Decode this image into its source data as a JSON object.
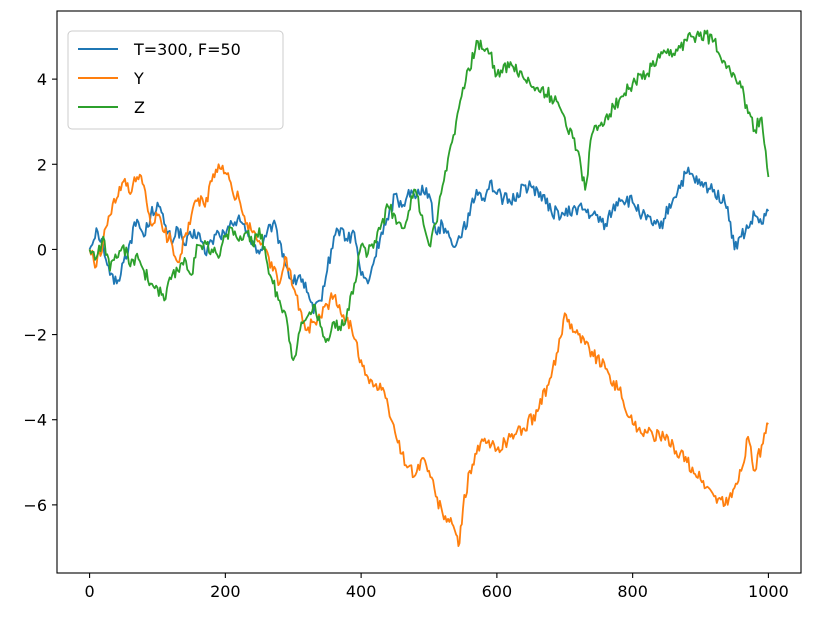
{
  "chart_data": {
    "type": "line",
    "title": "",
    "xlabel": "",
    "ylabel": "",
    "xlim": [
      -48,
      1048
    ],
    "ylim": [
      -7.6,
      5.6
    ],
    "xticks": [
      0,
      200,
      400,
      600,
      800,
      1000
    ],
    "yticks": [
      -6,
      -4,
      -2,
      0,
      2,
      4
    ],
    "ytick_labels": [
      "−6",
      "−4",
      "−2",
      "0",
      "2",
      "4"
    ],
    "grid": false,
    "legend_position": "top-left",
    "series": [
      {
        "name": "T=300, F=50",
        "color": "#1f77b4",
        "x": [
          0,
          10,
          20,
          30,
          40,
          50,
          60,
          70,
          80,
          90,
          100,
          110,
          120,
          130,
          140,
          150,
          160,
          170,
          180,
          190,
          200,
          210,
          220,
          230,
          240,
          250,
          260,
          270,
          280,
          290,
          300,
          310,
          320,
          330,
          340,
          350,
          360,
          370,
          380,
          390,
          400,
          410,
          420,
          430,
          440,
          450,
          460,
          470,
          480,
          490,
          500,
          510,
          520,
          530,
          540,
          550,
          560,
          570,
          580,
          590,
          600,
          620,
          640,
          660,
          680,
          700,
          720,
          740,
          760,
          780,
          800,
          820,
          840,
          860,
          880,
          900,
          920,
          940,
          950,
          960,
          970,
          980,
          990,
          1000
        ],
        "values": [
          0,
          0.5,
          0.1,
          -0.6,
          -0.8,
          -0.3,
          0.2,
          0.7,
          0.3,
          0.8,
          1.1,
          0.6,
          0.2,
          0.5,
          0.1,
          0.3,
          0.4,
          -0.1,
          0.2,
          0.4,
          0.3,
          0.6,
          0.8,
          0.4,
          0.2,
          -0.1,
          0.3,
          0.6,
          0.2,
          -0.4,
          -0.8,
          -0.6,
          -1.0,
          -1.5,
          -1.2,
          -0.5,
          0.3,
          0.5,
          0.2,
          0.4,
          -0.6,
          -0.8,
          -0.2,
          0.4,
          0.7,
          1.3,
          1.0,
          1.4,
          1.2,
          1.5,
          1.3,
          0.4,
          0.6,
          0.3,
          0.1,
          0.5,
          0.8,
          1.4,
          1.2,
          1.6,
          1.3,
          1.1,
          1.5,
          1.4,
          0.9,
          0.8,
          1.0,
          0.8,
          0.6,
          1.2,
          1.1,
          0.7,
          0.5,
          1.2,
          1.8,
          1.5,
          1.4,
          1.0,
          0.0,
          0.3,
          0.5,
          0.8,
          0.6,
          0.9
        ]
      },
      {
        "name": "Y",
        "color": "#ff7f0e",
        "x": [
          0,
          10,
          20,
          30,
          40,
          50,
          60,
          70,
          80,
          90,
          100,
          110,
          120,
          130,
          140,
          150,
          160,
          170,
          180,
          190,
          200,
          210,
          220,
          230,
          240,
          250,
          260,
          270,
          280,
          290,
          300,
          310,
          320,
          330,
          340,
          350,
          360,
          370,
          380,
          390,
          400,
          410,
          420,
          430,
          440,
          450,
          460,
          470,
          480,
          490,
          500,
          510,
          520,
          530,
          540,
          545,
          550,
          560,
          570,
          580,
          600,
          620,
          640,
          660,
          680,
          690,
          700,
          720,
          740,
          760,
          780,
          800,
          820,
          840,
          860,
          880,
          900,
          920,
          940,
          950,
          960,
          970,
          980,
          990,
          1000
        ],
        "values": [
          0,
          -0.4,
          0.2,
          0.8,
          1.2,
          1.6,
          1.3,
          1.7,
          1.5,
          0.6,
          0.8,
          0.4,
          0.2,
          -0.3,
          0.3,
          0.8,
          1.2,
          1.0,
          1.6,
          2.0,
          1.8,
          1.4,
          1.2,
          0.6,
          0.4,
          0.2,
          0.0,
          -0.5,
          -0.8,
          -0.2,
          -0.9,
          -1.4,
          -1.9,
          -1.7,
          -1.6,
          -1.3,
          -1.1,
          -1.5,
          -1.6,
          -2.1,
          -2.6,
          -3.0,
          -3.2,
          -3.3,
          -3.7,
          -4.3,
          -4.8,
          -5.1,
          -5.3,
          -4.9,
          -5.2,
          -5.8,
          -6.2,
          -6.4,
          -6.7,
          -6.9,
          -6.1,
          -5.2,
          -4.8,
          -4.5,
          -4.7,
          -4.4,
          -4.2,
          -3.8,
          -3.0,
          -2.4,
          -1.5,
          -2.0,
          -2.4,
          -2.8,
          -3.3,
          -4.1,
          -4.3,
          -4.4,
          -4.6,
          -5.0,
          -5.4,
          -5.8,
          -6.0,
          -5.6,
          -5.2,
          -4.4,
          -5.2,
          -4.6,
          -4.1
        ]
      },
      {
        "name": "Z",
        "color": "#2ca02c",
        "x": [
          0,
          10,
          20,
          30,
          40,
          50,
          60,
          70,
          80,
          90,
          100,
          110,
          120,
          130,
          140,
          150,
          160,
          170,
          180,
          190,
          200,
          210,
          220,
          230,
          240,
          250,
          260,
          270,
          280,
          290,
          300,
          310,
          320,
          330,
          340,
          350,
          360,
          370,
          380,
          390,
          400,
          410,
          420,
          430,
          440,
          450,
          460,
          470,
          480,
          490,
          500,
          510,
          520,
          530,
          540,
          550,
          560,
          570,
          580,
          590,
          600,
          620,
          640,
          660,
          680,
          700,
          720,
          730,
          740,
          760,
          780,
          800,
          820,
          840,
          860,
          880,
          900,
          920,
          940,
          950,
          960,
          970,
          980,
          990,
          1000
        ],
        "values": [
          0,
          -0.2,
          0.3,
          -0.5,
          -0.2,
          0.1,
          -0.4,
          -0.1,
          -0.5,
          -0.8,
          -0.9,
          -1.2,
          -0.7,
          -0.5,
          -0.2,
          -0.6,
          0.1,
          0.2,
          0.0,
          -0.2,
          0.3,
          0.5,
          0.2,
          0.4,
          0.1,
          0.5,
          -0.2,
          -0.8,
          -1.2,
          -1.6,
          -2.6,
          -1.9,
          -1.6,
          -1.3,
          -1.8,
          -2.1,
          -1.7,
          -1.9,
          -1.4,
          -0.8,
          0.1,
          -0.1,
          0.2,
          0.6,
          1.0,
          0.8,
          0.5,
          0.9,
          1.4,
          0.8,
          0.1,
          0.6,
          1.5,
          2.3,
          3.0,
          3.8,
          4.2,
          4.9,
          4.7,
          4.6,
          4.1,
          4.4,
          4.0,
          3.8,
          3.6,
          3.1,
          2.3,
          1.4,
          2.7,
          3.1,
          3.5,
          3.9,
          4.1,
          4.5,
          4.6,
          4.9,
          5.1,
          4.9,
          4.3,
          4.1,
          3.8,
          3.2,
          2.8,
          3.1,
          1.7
        ]
      }
    ]
  }
}
